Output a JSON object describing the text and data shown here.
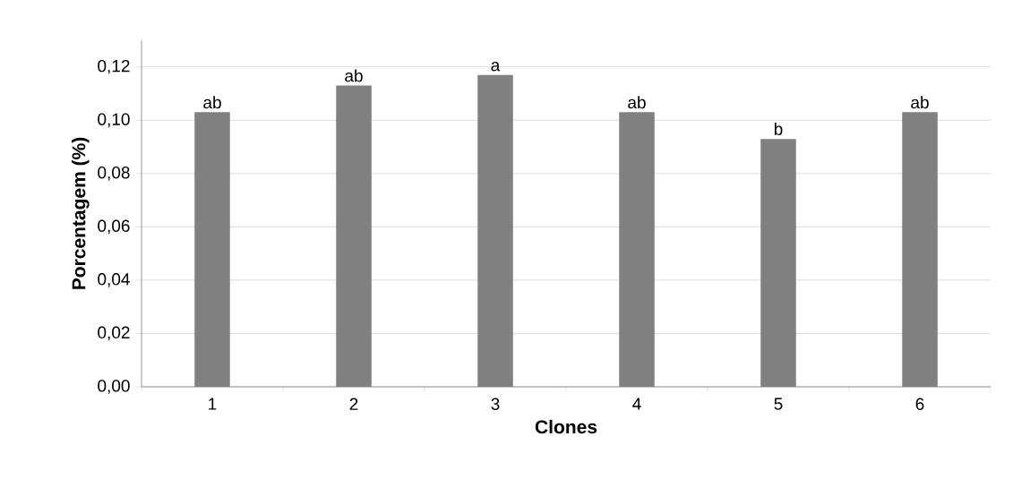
{
  "chart_data": {
    "type": "bar",
    "xlabel": "Clones",
    "ylabel": "Porcentagem (%)",
    "categories": [
      "1",
      "2",
      "3",
      "4",
      "5",
      "6"
    ],
    "values": [
      0.103,
      0.113,
      0.117,
      0.103,
      0.093,
      0.103
    ],
    "color": "#808080",
    "ylim": [
      0,
      0.13
    ],
    "yticks": [
      {
        "value": 0,
        "label": "0,00"
      },
      {
        "value": 0.02,
        "label": "0,02"
      },
      {
        "value": 0.04,
        "label": "0,04"
      },
      {
        "value": 0.06,
        "label": "0,06"
      },
      {
        "value": 0.08,
        "label": "0,08"
      },
      {
        "value": 0.1,
        "label": "0,10"
      },
      {
        "value": 0.12,
        "label": "0,12"
      }
    ],
    "grid": "y",
    "annotations": [
      {
        "text": "ab",
        "x": "1",
        "y": 0.103
      },
      {
        "text": "ab",
        "x": "2",
        "y": 0.113
      },
      {
        "text": "a",
        "x": "3",
        "y": 0.117
      },
      {
        "text": "ab",
        "x": "4",
        "y": 0.103
      },
      {
        "text": "b",
        "x": "5",
        "y": 0.093
      },
      {
        "text": "ab",
        "x": "6",
        "y": 0.103
      }
    ]
  }
}
